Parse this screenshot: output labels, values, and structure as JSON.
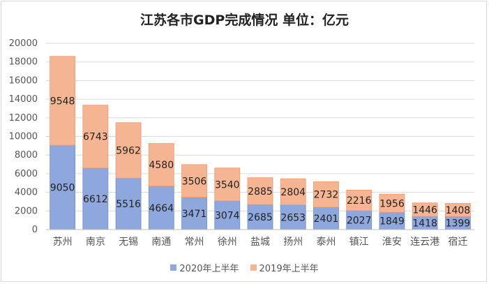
{
  "chart_data": {
    "type": "bar",
    "stacked": true,
    "title": "江苏各市GDP完成情况 单位：亿元",
    "categories": [
      "苏州",
      "南京",
      "无锡",
      "南通",
      "常州",
      "徐州",
      "盐城",
      "扬州",
      "泰州",
      "镇江",
      "淮安",
      "连云港",
      "宿迁"
    ],
    "series": [
      {
        "name": "2020年上半年",
        "color": "#8ea7dd",
        "values": [
          9050,
          6612,
          5516,
          4664,
          3471,
          3074,
          2685,
          2653,
          2401,
          2027,
          1849,
          1418,
          1399
        ]
      },
      {
        "name": "2019年上半年",
        "color": "#f5b592",
        "values": [
          9548,
          6743,
          5962,
          4580,
          3506,
          3540,
          2885,
          2804,
          2732,
          2216,
          1956,
          1446,
          1408
        ]
      }
    ],
    "yticks": [
      0,
      2000,
      4000,
      6000,
      8000,
      10000,
      12000,
      14000,
      16000,
      18000,
      20000
    ],
    "ylim": [
      0,
      20000
    ],
    "grid": true,
    "legend_position": "bottom"
  }
}
